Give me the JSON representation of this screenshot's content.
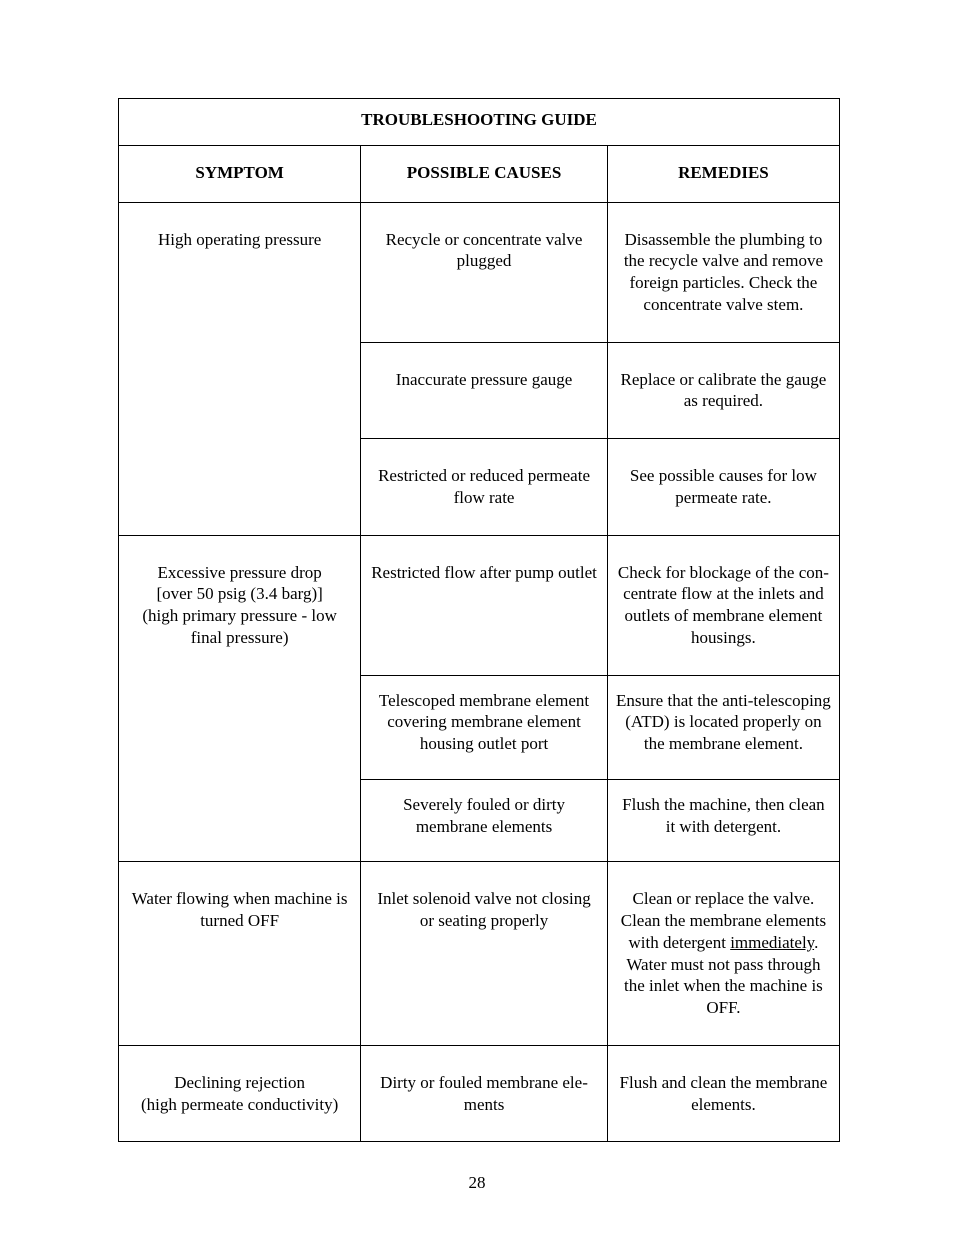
{
  "page_number": "28",
  "table": {
    "title": "TROUBLESHOOTING GUIDE",
    "headers": {
      "symptom": "SYMPTOM",
      "causes": "POSSIBLE CAUSES",
      "remedies": "REMEDIES"
    },
    "rows": {
      "r1": {
        "symptom": "High operating pressure",
        "cause1": "Recycle or concentrate valve plugged",
        "remedy1": "Disassemble the plumbing to the recycle valve and remove for­eign particles.  Check the con­centrate valve stem.",
        "cause2": "Inaccurate pressure gauge",
        "remedy2": "Replace or calibrate the gauge as required.",
        "cause3": "Restricted or reduced permeate flow rate",
        "remedy3": "See possible causes for low per­meate rate."
      },
      "r2": {
        "symptom": "Excessive pressure drop\n[over 50 psig (3.4 barg)]\n(high primary pressure - low\nfinal pressure)",
        "cause1": "Restricted flow after pump outlet",
        "remedy1": "Check for blockage of the con­centrate flow at the inlets and outlets of membrane element housings.",
        "cause2": "Telescoped membrane element covering membrane element housing outlet port",
        "remedy2": "Ensure that the anti-telescoping (ATD) is located properly on the membrane element.",
        "cause3": "Severely fouled or dirty membrane elements",
        "remedy3": "Flush the machine, then clean it with detergent."
      },
      "r3": {
        "symptom": "Water flowing when machine is turned OFF",
        "cause1": "Inlet solenoid valve not closing or seating properly",
        "remedy1_a": "Clean or replace the valve. Clean the membrane elements with detergent ",
        "remedy1_u": "immediately",
        "remedy1_b": ". Water must not pass through the inlet when the machine is OFF."
      },
      "r4": {
        "symptom": "Declining rejection\n(high permeate conductivity)",
        "cause1": "Dirty or fouled membrane ele­ments",
        "remedy1": "Flush and clean the membrane elements."
      }
    }
  }
}
